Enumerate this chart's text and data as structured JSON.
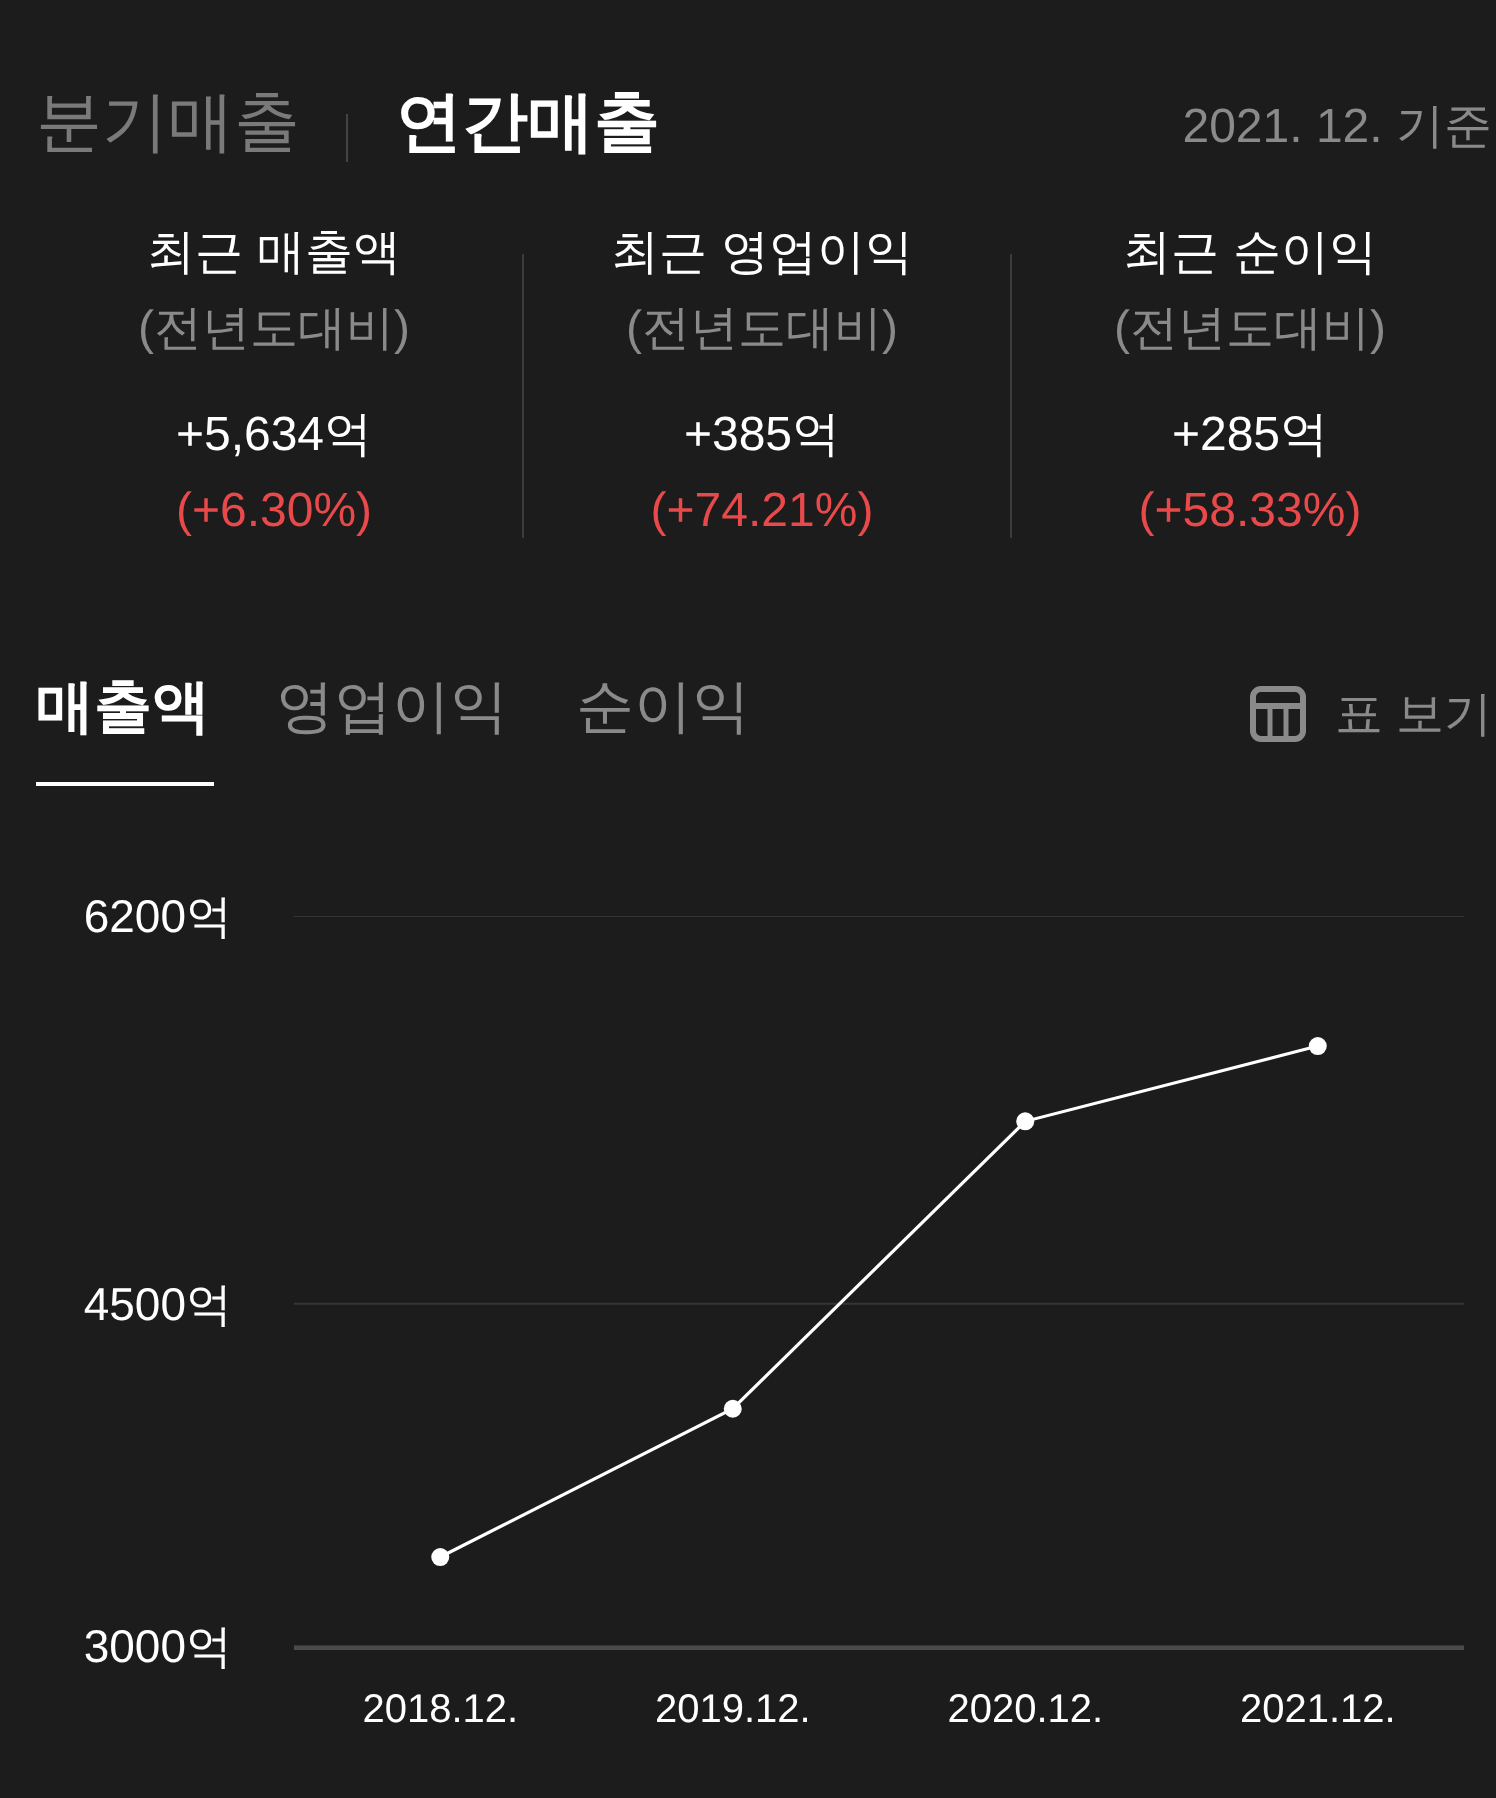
{
  "chart_data": [
    {
      "type": "other",
      "title": "연간매출",
      "annotations": [
        "분기매출",
        "2021. 12. 기준",
        "최근 매출액",
        "(전년도대비)",
        "+5,634억",
        "(+6.30%)",
        "최근 영업이익",
        "(전년도대비)",
        "+385억",
        "(+74.21%)",
        "최근 순이익",
        "(전년도대비)",
        "+285억",
        "(+58.33%)"
      ]
    },
    {
      "type": "line",
      "title": "매출액",
      "annotations": [
        "영업이익",
        "순이익",
        "표 보기"
      ],
      "categories": [
        "2018.12.",
        "2019.12.",
        "2020.12.",
        "2021.12."
      ],
      "values": [
        3390,
        4040,
        5300,
        5630
      ],
      "color": "#ffffff",
      "ylim": [
        3000,
        6200
      ],
      "yticks": [
        {
          "value": 3000,
          "label": "3000억"
        },
        {
          "value": 4500,
          "label": "4500억"
        },
        {
          "value": 6200,
          "label": "6200억"
        }
      ],
      "grid": "y",
      "marker": "circle",
      "line_style": "solid",
      "legend": false
    }
  ]
}
